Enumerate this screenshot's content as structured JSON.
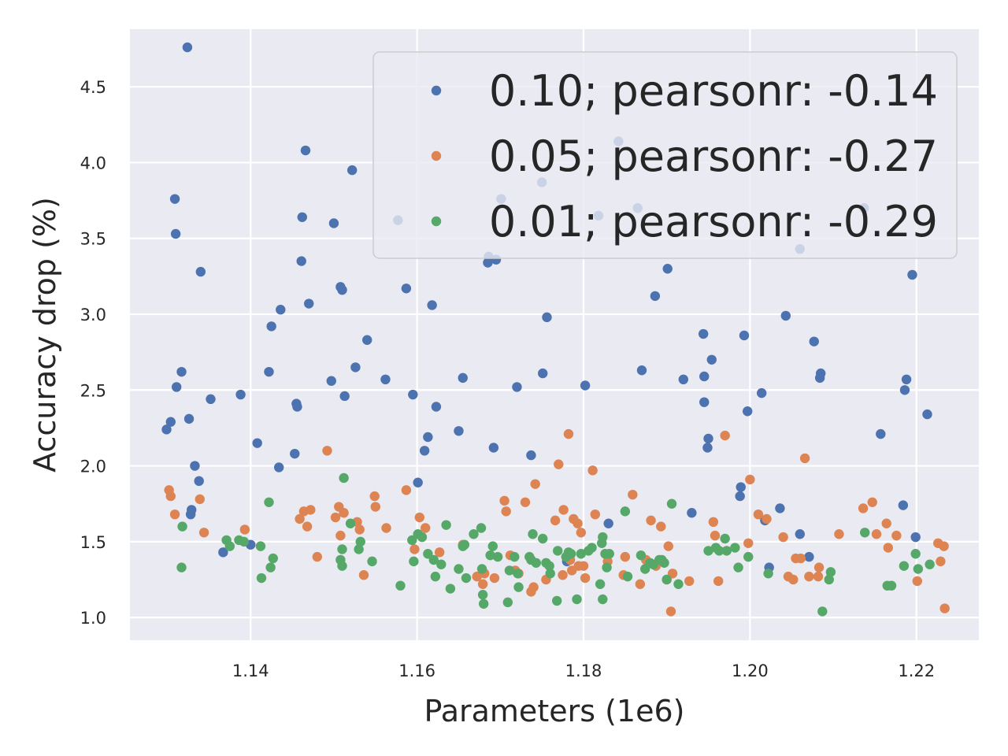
{
  "chart_data": {
    "type": "scatter",
    "title": "",
    "xlabel": "Parameters (1e6)",
    "ylabel": "Accuracy drop (%)",
    "xlim": [
      1.1255,
      1.2275
    ],
    "ylim": [
      0.85,
      4.88
    ],
    "x_ticks": [
      "1.14",
      "1.16",
      "1.18",
      "1.20",
      "1.22"
    ],
    "y_ticks": [
      "1.0",
      "1.5",
      "2.0",
      "2.5",
      "3.0",
      "3.5",
      "4.0",
      "4.5"
    ],
    "grid": true,
    "legend_position": "top-right",
    "series": [
      {
        "name": "0.10; pearsonr: -0.14",
        "color": "#4c72b0",
        "points": [
          [
            1.1299,
            2.24
          ],
          [
            1.1304,
            2.29
          ],
          [
            1.1309,
            3.76
          ],
          [
            1.131,
            3.53
          ],
          [
            1.1311,
            2.52
          ],
          [
            1.1317,
            2.62
          ],
          [
            1.1324,
            4.76
          ],
          [
            1.1326,
            2.31
          ],
          [
            1.1328,
            1.68
          ],
          [
            1.1329,
            1.71
          ],
          [
            1.1333,
            2.0
          ],
          [
            1.1338,
            1.9
          ],
          [
            1.134,
            3.28
          ],
          [
            1.1352,
            2.44
          ],
          [
            1.1367,
            1.43
          ],
          [
            1.1388,
            2.47
          ],
          [
            1.14,
            1.48
          ],
          [
            1.1408,
            2.15
          ],
          [
            1.1422,
            2.62
          ],
          [
            1.1425,
            2.92
          ],
          [
            1.1434,
            1.99
          ],
          [
            1.1436,
            3.03
          ],
          [
            1.1453,
            2.08
          ],
          [
            1.1455,
            2.41
          ],
          [
            1.1456,
            2.39
          ],
          [
            1.1461,
            3.35
          ],
          [
            1.1462,
            3.64
          ],
          [
            1.1466,
            4.08
          ],
          [
            1.147,
            3.07
          ],
          [
            1.1497,
            2.56
          ],
          [
            1.15,
            3.6
          ],
          [
            1.1508,
            3.18
          ],
          [
            1.151,
            3.16
          ],
          [
            1.1513,
            2.46
          ],
          [
            1.1522,
            3.95
          ],
          [
            1.1526,
            2.65
          ],
          [
            1.154,
            2.83
          ],
          [
            1.1562,
            2.57
          ],
          [
            1.1577,
            3.62
          ],
          [
            1.1587,
            3.17
          ],
          [
            1.1595,
            2.47
          ],
          [
            1.1601,
            1.89
          ],
          [
            1.1609,
            2.1
          ],
          [
            1.1613,
            2.19
          ],
          [
            1.1618,
            3.06
          ],
          [
            1.1623,
            2.39
          ],
          [
            1.165,
            2.23
          ],
          [
            1.1655,
            2.58
          ],
          [
            1.1685,
            3.34
          ],
          [
            1.1686,
            3.38
          ],
          [
            1.1692,
            2.12
          ],
          [
            1.1695,
            3.36
          ],
          [
            1.1701,
            3.76
          ],
          [
            1.172,
            2.52
          ],
          [
            1.1737,
            2.07
          ],
          [
            1.175,
            3.87
          ],
          [
            1.1751,
            2.61
          ],
          [
            1.1756,
            2.98
          ],
          [
            1.178,
            1.37
          ],
          [
            1.1802,
            2.53
          ],
          [
            1.1818,
            3.65
          ],
          [
            1.183,
            1.62
          ],
          [
            1.1842,
            4.14
          ],
          [
            1.1865,
            3.7
          ],
          [
            1.187,
            2.63
          ],
          [
            1.1886,
            3.12
          ],
          [
            1.1901,
            3.3
          ],
          [
            1.192,
            2.57
          ],
          [
            1.193,
            1.69
          ],
          [
            1.1944,
            2.87
          ],
          [
            1.1945,
            2.59
          ],
          [
            1.1945,
            2.42
          ],
          [
            1.1949,
            2.12
          ],
          [
            1.195,
            2.18
          ],
          [
            1.1954,
            2.7
          ],
          [
            1.1988,
            1.8
          ],
          [
            1.1989,
            1.86
          ],
          [
            1.1993,
            2.86
          ],
          [
            1.1997,
            2.36
          ],
          [
            1.2014,
            2.48
          ],
          [
            1.2018,
            1.64
          ],
          [
            1.2023,
            1.33
          ],
          [
            1.2036,
            1.72
          ],
          [
            1.2043,
            2.99
          ],
          [
            1.206,
            3.43
          ],
          [
            1.206,
            1.55
          ],
          [
            1.2071,
            1.4
          ],
          [
            1.2077,
            2.82
          ],
          [
            1.2084,
            2.58
          ],
          [
            1.2085,
            2.61
          ],
          [
            1.2137,
            3.7
          ],
          [
            1.2157,
            2.21
          ],
          [
            1.2184,
            1.74
          ],
          [
            1.2186,
            2.5
          ],
          [
            1.2188,
            2.57
          ],
          [
            1.2195,
            3.26
          ],
          [
            1.2199,
            1.53
          ],
          [
            1.2213,
            2.34
          ]
        ]
      },
      {
        "name": "0.05; pearsonr: -0.27",
        "color": "#dd8452",
        "points": [
          [
            1.1302,
            1.84
          ],
          [
            1.1304,
            1.8
          ],
          [
            1.1309,
            1.68
          ],
          [
            1.1339,
            1.78
          ],
          [
            1.1344,
            1.56
          ],
          [
            1.1393,
            1.58
          ],
          [
            1.1459,
            1.65
          ],
          [
            1.1464,
            1.7
          ],
          [
            1.1468,
            1.6
          ],
          [
            1.1472,
            1.71
          ],
          [
            1.148,
            1.4
          ],
          [
            1.1492,
            2.1
          ],
          [
            1.1502,
            1.66
          ],
          [
            1.1506,
            1.73
          ],
          [
            1.1508,
            1.54
          ],
          [
            1.1512,
            1.69
          ],
          [
            1.1528,
            1.63
          ],
          [
            1.1531,
            1.58
          ],
          [
            1.1536,
            1.28
          ],
          [
            1.1549,
            1.8
          ],
          [
            1.155,
            1.73
          ],
          [
            1.1563,
            1.59
          ],
          [
            1.1587,
            1.84
          ],
          [
            1.1597,
            1.45
          ],
          [
            1.1603,
            1.66
          ],
          [
            1.161,
            1.59
          ],
          [
            1.1627,
            1.43
          ],
          [
            1.1655,
            1.48
          ],
          [
            1.1672,
            1.27
          ],
          [
            1.1679,
            1.22
          ],
          [
            1.1681,
            1.29
          ],
          [
            1.1693,
            1.26
          ],
          [
            1.1705,
            1.77
          ],
          [
            1.1707,
            1.7
          ],
          [
            1.1712,
            1.41
          ],
          [
            1.1718,
            1.31
          ],
          [
            1.1722,
            1.29
          ],
          [
            1.173,
            1.76
          ],
          [
            1.1737,
            1.17
          ],
          [
            1.174,
            1.2
          ],
          [
            1.1742,
            1.88
          ],
          [
            1.1755,
            1.25
          ],
          [
            1.1766,
            1.64
          ],
          [
            1.177,
            2.01
          ],
          [
            1.1775,
            1.28
          ],
          [
            1.1776,
            1.71
          ],
          [
            1.1782,
            2.21
          ],
          [
            1.1784,
            1.38
          ],
          [
            1.1786,
            1.31
          ],
          [
            1.1788,
            1.65
          ],
          [
            1.1793,
            1.62
          ],
          [
            1.1794,
            1.34
          ],
          [
            1.1797,
            1.56
          ],
          [
            1.18,
            1.34
          ],
          [
            1.1802,
            1.26
          ],
          [
            1.1811,
            1.97
          ],
          [
            1.1814,
            1.68
          ],
          [
            1.1829,
            1.37
          ],
          [
            1.1848,
            1.28
          ],
          [
            1.185,
            1.4
          ],
          [
            1.1859,
            1.81
          ],
          [
            1.1868,
            1.22
          ],
          [
            1.1875,
            1.38
          ],
          [
            1.1881,
            1.64
          ],
          [
            1.1887,
            1.34
          ],
          [
            1.1893,
            1.6
          ],
          [
            1.19,
            1.25
          ],
          [
            1.1902,
            1.47
          ],
          [
            1.1905,
            1.04
          ],
          [
            1.1907,
            1.29
          ],
          [
            1.1927,
            1.24
          ],
          [
            1.1956,
            1.63
          ],
          [
            1.1958,
            1.54
          ],
          [
            1.1962,
            1.24
          ],
          [
            1.197,
            2.2
          ],
          [
            1.1998,
            1.49
          ],
          [
            1.2,
            1.91
          ],
          [
            1.201,
            1.68
          ],
          [
            1.202,
            1.65
          ],
          [
            1.204,
            1.53
          ],
          [
            1.2046,
            1.27
          ],
          [
            1.2052,
            1.25
          ],
          [
            1.2055,
            1.39
          ],
          [
            1.2061,
            1.39
          ],
          [
            1.2066,
            2.05
          ],
          [
            1.2071,
            1.27
          ],
          [
            1.2082,
            1.27
          ],
          [
            1.2083,
            1.33
          ],
          [
            1.2107,
            1.55
          ],
          [
            1.2136,
            1.72
          ],
          [
            1.2147,
            1.76
          ],
          [
            1.2152,
            1.55
          ],
          [
            1.2164,
            1.62
          ],
          [
            1.2166,
            1.46
          ],
          [
            1.2176,
            1.54
          ],
          [
            1.2201,
            1.24
          ],
          [
            1.2226,
            1.49
          ],
          [
            1.2229,
            1.37
          ],
          [
            1.2233,
            1.47
          ],
          [
            1.2234,
            1.06
          ]
        ]
      },
      {
        "name": "0.01; pearsonr: -0.29",
        "color": "#55a868",
        "points": [
          [
            1.1317,
            1.33
          ],
          [
            1.1318,
            1.6
          ],
          [
            1.1371,
            1.51
          ],
          [
            1.1375,
            1.47
          ],
          [
            1.1386,
            1.51
          ],
          [
            1.1392,
            1.5
          ],
          [
            1.1412,
            1.47
          ],
          [
            1.1413,
            1.26
          ],
          [
            1.1422,
            1.76
          ],
          [
            1.1424,
            1.33
          ],
          [
            1.1427,
            1.39
          ],
          [
            1.1508,
            1.38
          ],
          [
            1.151,
            1.45
          ],
          [
            1.151,
            1.34
          ],
          [
            1.1512,
            1.92
          ],
          [
            1.152,
            1.62
          ],
          [
            1.153,
            1.45
          ],
          [
            1.1532,
            1.5
          ],
          [
            1.1546,
            1.37
          ],
          [
            1.158,
            1.21
          ],
          [
            1.1594,
            1.51
          ],
          [
            1.1596,
            1.37
          ],
          [
            1.1601,
            1.55
          ],
          [
            1.1606,
            1.53
          ],
          [
            1.1613,
            1.42
          ],
          [
            1.162,
            1.38
          ],
          [
            1.1622,
            1.27
          ],
          [
            1.1629,
            1.35
          ],
          [
            1.1635,
            1.61
          ],
          [
            1.164,
            1.19
          ],
          [
            1.165,
            1.32
          ],
          [
            1.1655,
            1.47
          ],
          [
            1.1657,
            1.48
          ],
          [
            1.1659,
            1.26
          ],
          [
            1.1668,
            1.55
          ],
          [
            1.1677,
            1.59
          ],
          [
            1.1678,
            1.32
          ],
          [
            1.1679,
            1.15
          ],
          [
            1.168,
            1.09
          ],
          [
            1.1688,
            1.41
          ],
          [
            1.1691,
            1.47
          ],
          [
            1.1697,
            1.4
          ],
          [
            1.1709,
            1.1
          ],
          [
            1.1711,
            1.31
          ],
          [
            1.1717,
            1.4
          ],
          [
            1.1721,
            1.29
          ],
          [
            1.1722,
            1.2
          ],
          [
            1.1735,
            1.4
          ],
          [
            1.1737,
            1.38
          ],
          [
            1.1739,
            1.55
          ],
          [
            1.1743,
            1.36
          ],
          [
            1.1751,
            1.52
          ],
          [
            1.1755,
            1.36
          ],
          [
            1.1759,
            1.34
          ],
          [
            1.176,
            1.29
          ],
          [
            1.1768,
            1.11
          ],
          [
            1.1769,
            1.44
          ],
          [
            1.1779,
            1.4
          ],
          [
            1.1782,
            1.43
          ],
          [
            1.1785,
            1.42
          ],
          [
            1.1792,
            1.12
          ],
          [
            1.1797,
            1.42
          ],
          [
            1.1806,
            1.44
          ],
          [
            1.181,
            1.46
          ],
          [
            1.182,
            1.22
          ],
          [
            1.1822,
            1.49
          ],
          [
            1.1823,
            1.53
          ],
          [
            1.1823,
            1.12
          ],
          [
            1.1826,
            1.42
          ],
          [
            1.1828,
            1.33
          ],
          [
            1.1831,
            1.42
          ],
          [
            1.185,
            1.7
          ],
          [
            1.1853,
            1.27
          ],
          [
            1.1869,
            1.41
          ],
          [
            1.1874,
            1.32
          ],
          [
            1.188,
            1.36
          ],
          [
            1.1884,
            1.35
          ],
          [
            1.1891,
            1.38
          ],
          [
            1.1894,
            1.38
          ],
          [
            1.1897,
            1.36
          ],
          [
            1.19,
            1.25
          ],
          [
            1.1906,
            1.75
          ],
          [
            1.1914,
            1.22
          ],
          [
            1.195,
            1.44
          ],
          [
            1.1959,
            1.46
          ],
          [
            1.1963,
            1.44
          ],
          [
            1.197,
            1.52
          ],
          [
            1.1972,
            1.44
          ],
          [
            1.1982,
            1.46
          ],
          [
            1.1986,
            1.33
          ],
          [
            1.1998,
            1.4
          ],
          [
            1.2022,
            1.29
          ],
          [
            1.2087,
            1.04
          ],
          [
            1.2095,
            1.25
          ],
          [
            1.2097,
            1.3
          ],
          [
            1.2138,
            1.56
          ],
          [
            1.2165,
            1.21
          ],
          [
            1.217,
            1.21
          ],
          [
            1.2185,
            1.34
          ],
          [
            1.2199,
            1.42
          ],
          [
            1.2202,
            1.32
          ],
          [
            1.2216,
            1.35
          ]
        ]
      }
    ]
  }
}
